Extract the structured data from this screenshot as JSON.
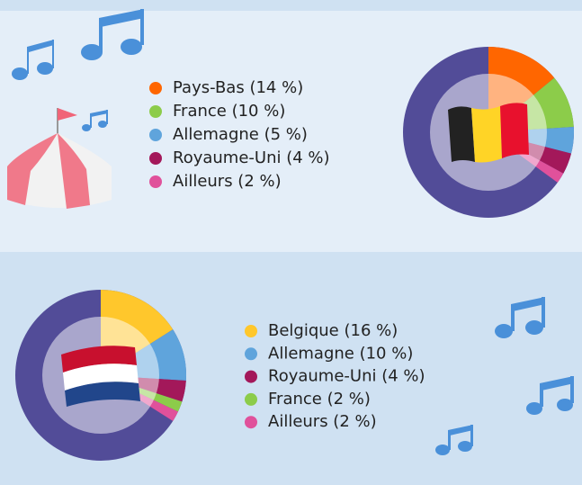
{
  "chart_data": [
    {
      "type": "pie",
      "categories": [
        "Pays-Bas (14 %)",
        "France (10 %)",
        "Allemagne (5 %)",
        "Royaume-Uni (4 %)",
        "Ailleurs (2 %)"
      ],
      "values": [
        14,
        10,
        5,
        4,
        2
      ],
      "colors": [
        "#ff6600",
        "#8ccc4a",
        "#5fa4dc",
        "#a3185a",
        "#e0519b"
      ]
    },
    {
      "type": "pie",
      "categories": [
        "Belgique (16 %)",
        "Allemagne (10 %)",
        "Royaume-Uni (4 %)",
        "France (2 %)",
        "Ailleurs (2 %)"
      ],
      "values": [
        16,
        10,
        4,
        2,
        2
      ],
      "colors": [
        "#ffc72c",
        "#5fa4dc",
        "#a3185a",
        "#8ccc4a",
        "#e0519b"
      ]
    }
  ]
}
